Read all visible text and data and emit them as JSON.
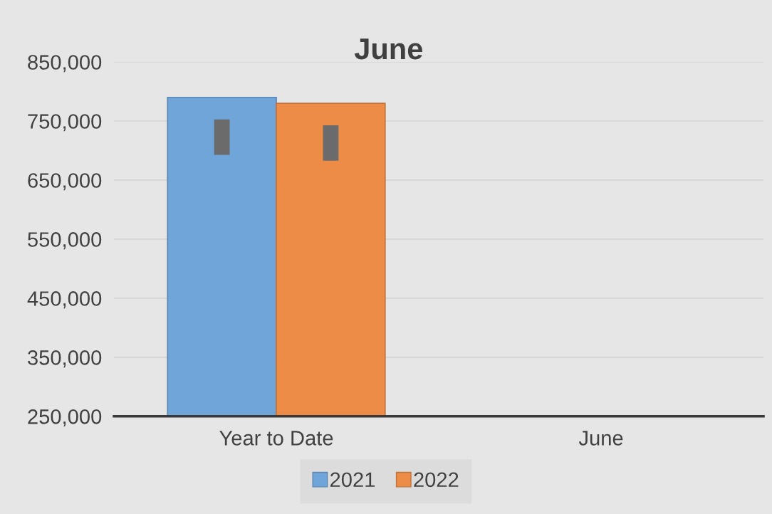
{
  "chart_data": {
    "type": "bar",
    "title": "June",
    "categories": [
      "Year to Date",
      "June"
    ],
    "series": [
      {
        "name": "2021",
        "color": "#6fa5d9",
        "values": [
          790000,
          null
        ]
      },
      {
        "name": "2022",
        "color": "#ed8c47",
        "values": [
          780000,
          null
        ]
      }
    ],
    "ylim": [
      250000,
      850000
    ],
    "yticks": [
      {
        "value": 250000,
        "label": "250,000"
      },
      {
        "value": 350000,
        "label": "350,000"
      },
      {
        "value": 450000,
        "label": "450,000"
      },
      {
        "value": 550000,
        "label": "550,000"
      },
      {
        "value": 650000,
        "label": "650,000"
      },
      {
        "value": 750000,
        "label": "750,000"
      },
      {
        "value": 850000,
        "label": "850,000"
      }
    ],
    "grid": "y",
    "legend": "bottom"
  }
}
